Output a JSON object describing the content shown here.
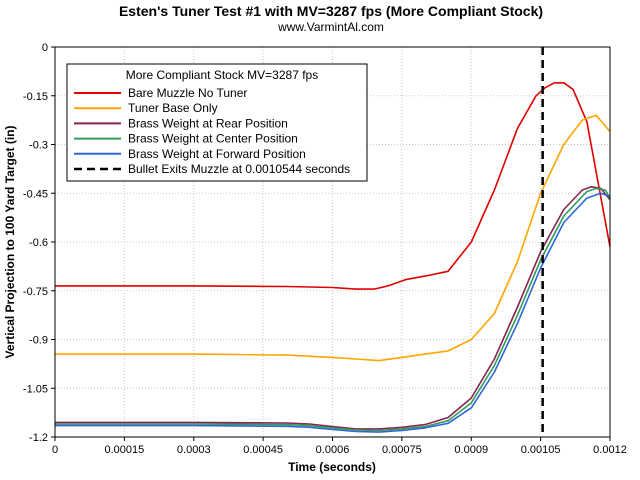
{
  "chart_data": {
    "type": "line",
    "title": "Esten's Tuner Test #1 with MV=3287 fps (More Compliant Stock)",
    "subtitle": "www.VarmintAl.com",
    "xlabel": "Time (seconds)",
    "ylabel": "Vertical Projection to 100 Yard Target (in)",
    "xlim": [
      0,
      0.0012
    ],
    "ylim": [
      -1.2,
      0
    ],
    "x_tick_labels": [
      "0",
      "0.00015",
      "0.0003",
      "0.00045",
      "0.0006",
      "0.00075",
      "0.0009",
      "0.00105",
      "0.0012"
    ],
    "y_tick_labels": [
      "0",
      "-0.15",
      "-0.3",
      "-0.45",
      "-0.6",
      "-0.75",
      "-0.9",
      "-1.05",
      "-1.2"
    ],
    "grid": true,
    "legend_title": "More Compliant Stock MV=3287 fps",
    "legend_position": "top-left",
    "exit_time": 0.0010544,
    "exit_label": "Bullet Exits Muzzle at 0.0010544 seconds",
    "series": [
      {
        "name": "Bare Muzzle No Tuner",
        "color": "#e00000",
        "x": [
          0,
          0.0003,
          0.0005,
          0.0006,
          0.00065,
          0.00069,
          0.00072,
          0.00076,
          0.0008,
          0.00085,
          0.0009,
          0.00095,
          0.001,
          0.00104,
          0.00106,
          0.00108,
          0.0011,
          0.00112,
          0.00115,
          0.0012
        ],
        "y": [
          -0.735,
          -0.735,
          -0.737,
          -0.74,
          -0.745,
          -0.745,
          -0.735,
          -0.715,
          -0.705,
          -0.69,
          -0.6,
          -0.44,
          -0.25,
          -0.15,
          -0.125,
          -0.11,
          -0.11,
          -0.13,
          -0.23,
          -0.615
        ]
      },
      {
        "name": "Tuner Base Only",
        "color": "#ffa500",
        "x": [
          0,
          0.0003,
          0.0005,
          0.0006,
          0.00065,
          0.0007,
          0.00075,
          0.0008,
          0.00085,
          0.0009,
          0.00095,
          0.001,
          0.00105,
          0.0011,
          0.00114,
          0.00117,
          0.0012
        ],
        "y": [
          -0.945,
          -0.945,
          -0.948,
          -0.955,
          -0.96,
          -0.965,
          -0.955,
          -0.945,
          -0.935,
          -0.9,
          -0.82,
          -0.66,
          -0.45,
          -0.3,
          -0.225,
          -0.21,
          -0.26
        ]
      },
      {
        "name": "Brass Weight at Rear Position",
        "color": "#8b2252",
        "x": [
          0,
          0.0003,
          0.0005,
          0.00055,
          0.0006,
          0.00065,
          0.0007,
          0.00075,
          0.0008,
          0.00085,
          0.0009,
          0.00095,
          0.001,
          0.00105,
          0.0011,
          0.00114,
          0.00116,
          0.00118,
          0.0012
        ],
        "y": [
          -1.155,
          -1.155,
          -1.157,
          -1.16,
          -1.168,
          -1.175,
          -1.175,
          -1.17,
          -1.162,
          -1.14,
          -1.08,
          -0.96,
          -0.8,
          -0.63,
          -0.5,
          -0.44,
          -0.43,
          -0.435,
          -0.47
        ]
      },
      {
        "name": "Brass Weight at Center Position",
        "color": "#2e9e5a",
        "x": [
          0,
          0.0003,
          0.0005,
          0.00055,
          0.0006,
          0.00065,
          0.0007,
          0.00075,
          0.0008,
          0.00085,
          0.0009,
          0.00095,
          0.001,
          0.00105,
          0.0011,
          0.00115,
          0.00117,
          0.00119,
          0.0012
        ],
        "y": [
          -1.16,
          -1.16,
          -1.162,
          -1.165,
          -1.172,
          -1.178,
          -1.18,
          -1.175,
          -1.168,
          -1.15,
          -1.095,
          -0.98,
          -0.825,
          -0.655,
          -0.52,
          -0.445,
          -0.435,
          -0.44,
          -0.465
        ]
      },
      {
        "name": "Brass Weight at Forward Position",
        "color": "#2f66d8",
        "x": [
          0,
          0.0003,
          0.0005,
          0.00055,
          0.0006,
          0.00065,
          0.0007,
          0.00075,
          0.0008,
          0.00085,
          0.0009,
          0.00095,
          0.001,
          0.00105,
          0.0011,
          0.00115,
          0.00118,
          0.0012
        ],
        "y": [
          -1.165,
          -1.165,
          -1.167,
          -1.17,
          -1.177,
          -1.183,
          -1.185,
          -1.18,
          -1.172,
          -1.158,
          -1.11,
          -1.0,
          -0.85,
          -0.68,
          -0.54,
          -0.465,
          -0.45,
          -0.46
        ]
      }
    ]
  }
}
